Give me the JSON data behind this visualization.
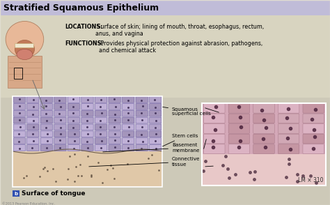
{
  "title": "Stratified Squamous Epithelium",
  "title_fontsize": 9,
  "title_bg_color": "#c0bcd8",
  "bg_color": "#cdc9b8",
  "locations_bold": "LOCATIONS:",
  "locations_text": " Surface of skin; lining of mouth, throat, esophagus, rectum,\nanus, and vagina",
  "functions_bold": "FUNCTIONS:",
  "functions_text": " Provides physical protection against abrasion, pathogens,\nand chemical attack",
  "labels": [
    "Squamous\nsuperficial cells",
    "Stem cells",
    "Basement\nmembrane",
    "Connective\ntissue"
  ],
  "caption_label": "Surface of tongue",
  "lm_text": "LM × 310",
  "copyright": "©2013 Pearson Education, Inc.",
  "diagram_bg": "#c4bcd4",
  "diagram_cell_colors": [
    "#b0a0c8",
    "#c0b0d8",
    "#a090b8"
  ],
  "diagram_cell_edge": "#6858a0",
  "diagram_nucleus_color": "#483860",
  "diagram_bottom_bg": "#e0c8a8",
  "diagram_dot_color": "#605040",
  "micro_top_bg": "#d4a8b8",
  "micro_cell_colors": [
    "#c0909c",
    "#d0a8b4",
    "#e0b8c8"
  ],
  "micro_cell_edge": "#906070",
  "micro_nucleus_color": "#502840",
  "micro_bot_bg": "#e8c8c8",
  "micro_dot_color": "#604050",
  "info_bg": "#d8d4c0",
  "border_color": "#e0ddd0",
  "lm_color": "#303030"
}
